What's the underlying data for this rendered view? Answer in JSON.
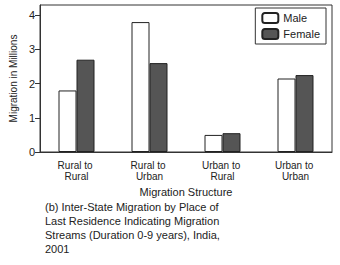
{
  "chart_data": {
    "type": "bar",
    "title": "(b) Inter-State Migration by Place of Last Residence Indicating Migration Streams (Duration 0-9 years), India, 2001",
    "x_label": "Migration Structure",
    "y_label": "Migration in Millions",
    "categories": [
      "Rural to Rural",
      "Rural to Urban",
      "Urban to Rural",
      "Urban to Urban"
    ],
    "series": [
      {
        "name": "Male",
        "color": "#ffffff",
        "values": [
          1.8,
          3.8,
          0.5,
          2.15
        ]
      },
      {
        "name": "Female",
        "color": "#555555",
        "values": [
          2.7,
          2.6,
          0.55,
          2.25
        ]
      }
    ],
    "ylim": [
      0,
      4.3
    ],
    "yticks": [
      0,
      1,
      2,
      3,
      4
    ],
    "grid": false,
    "legend": "upper right"
  }
}
